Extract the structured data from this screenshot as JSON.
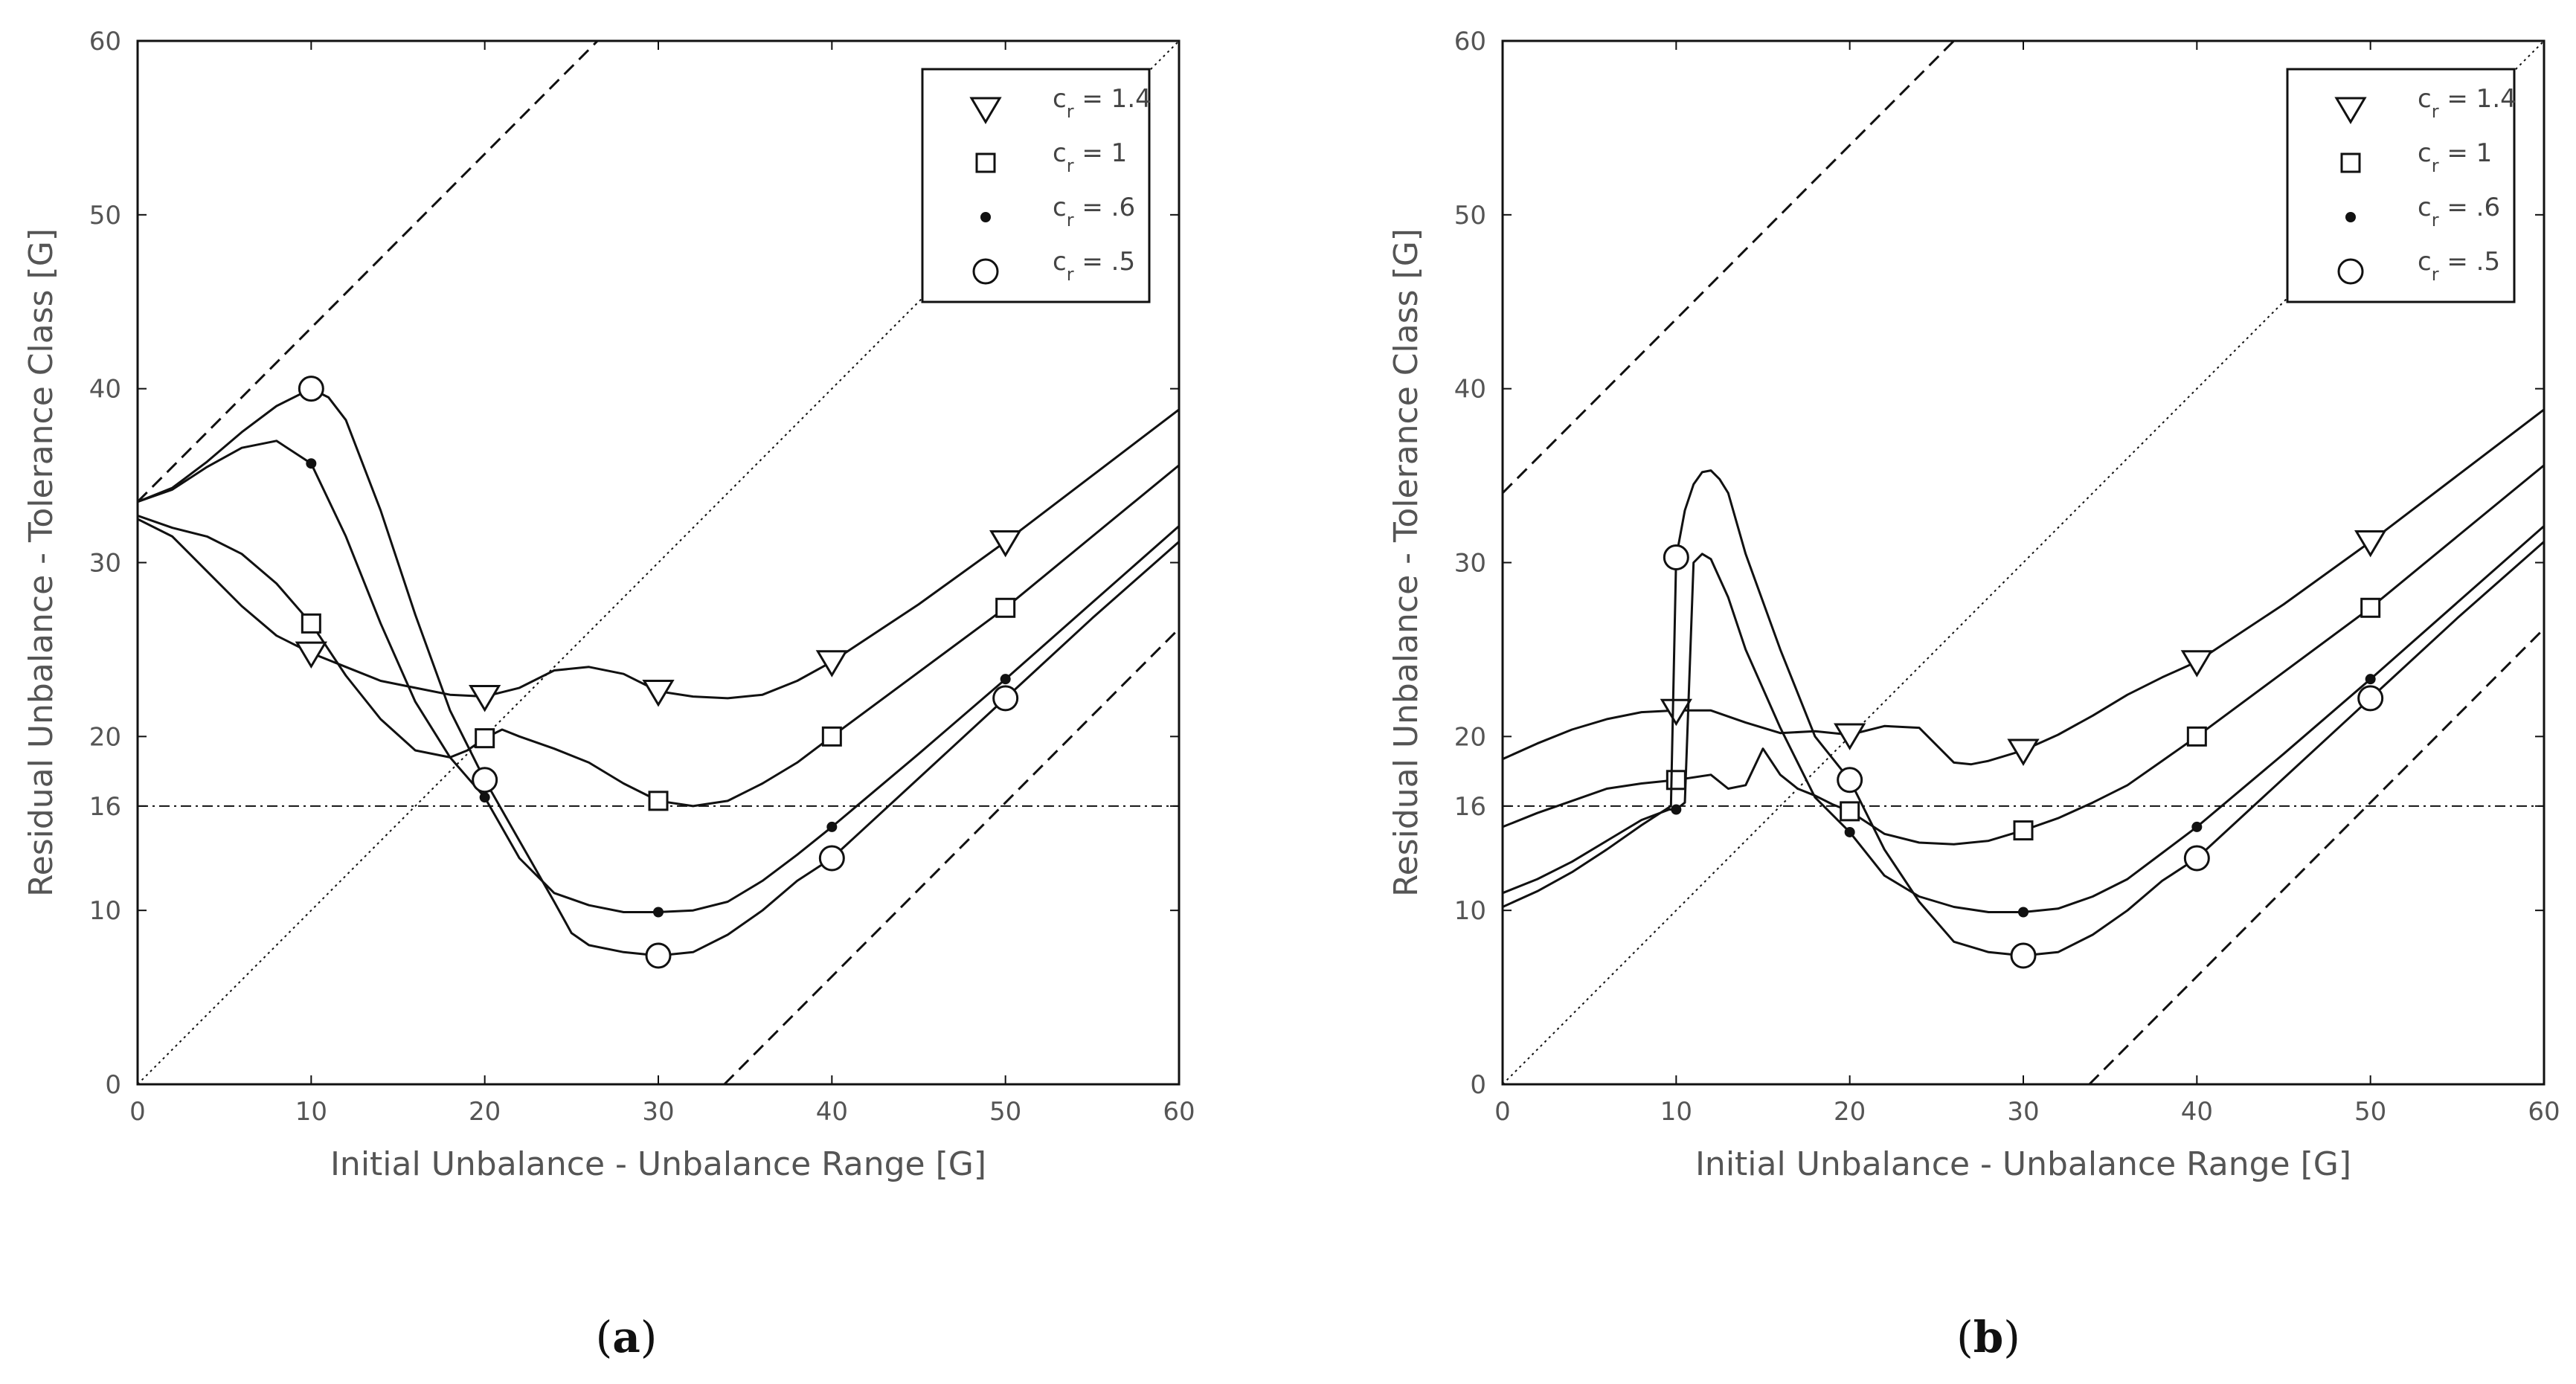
{
  "chart_data": [
    {
      "type": "line",
      "panel_label": "a",
      "xlabel": "Initial Unbalance - Unbalance Range [G]",
      "ylabel": "Residual Unbalance - Tolerance Class [G]",
      "xlim": [
        0,
        60
      ],
      "ylim": [
        0,
        60
      ],
      "xticks": [
        "0",
        "10",
        "20",
        "30",
        "40",
        "50",
        "60"
      ],
      "yticks": [
        "0",
        "10",
        "16",
        "20",
        "30",
        "40",
        "50",
        "60"
      ],
      "reference_lines": [
        {
          "name": "upper dashed",
          "style": "dashed",
          "x": [
            0,
            26.5
          ],
          "y": [
            33.5,
            60
          ]
        },
        {
          "name": "lower dashed",
          "style": "dashed",
          "x": [
            33.8,
            60
          ],
          "y": [
            0,
            26.2
          ]
        },
        {
          "name": "identity",
          "style": "dotted",
          "x": [
            0,
            60
          ],
          "y": [
            0,
            60
          ]
        },
        {
          "name": "tolerance class 16",
          "style": "dashdot",
          "x": [
            0,
            60
          ],
          "y": [
            16,
            16
          ]
        }
      ],
      "legend": {
        "position": "top-right",
        "entries": [
          {
            "label_main": "c",
            "label_sub": "r",
            "label_rest": " = 1.4",
            "marker": "triangle"
          },
          {
            "label_main": "c",
            "label_sub": "r",
            "label_rest": " = 1",
            "marker": "square"
          },
          {
            "label_main": "c",
            "label_sub": "r",
            "label_rest": " = .6",
            "marker": "dot"
          },
          {
            "label_main": "c",
            "label_sub": "r",
            "label_rest": " = .5",
            "marker": "circle"
          }
        ]
      },
      "series": [
        {
          "name": "c_r = 1.4",
          "marker": "triangle",
          "x": [
            0,
            2,
            4,
            6,
            8,
            10,
            12,
            14,
            16,
            18,
            20,
            22,
            24,
            26,
            28,
            30,
            32,
            34,
            36,
            38,
            40,
            45,
            50,
            55,
            60
          ],
          "y": [
            32.5,
            31.5,
            29.5,
            27.5,
            25.8,
            24.8,
            24.0,
            23.2,
            22.8,
            22.4,
            22.3,
            22.8,
            23.8,
            24.0,
            23.6,
            22.6,
            22.3,
            22.2,
            22.4,
            23.2,
            24.3,
            27.6,
            31.2,
            35.0,
            38.8
          ],
          "marker_x": [
            10,
            20,
            30,
            40,
            50
          ],
          "marker_y": [
            24.8,
            22.3,
            22.6,
            24.3,
            31.2
          ]
        },
        {
          "name": "c_r = 1",
          "marker": "square",
          "x": [
            0,
            2,
            4,
            6,
            8,
            10,
            12,
            14,
            16,
            18,
            19,
            20,
            21,
            22,
            24,
            26,
            28,
            30,
            32,
            34,
            36,
            38,
            40,
            45,
            50,
            55,
            60
          ],
          "y": [
            32.7,
            32.0,
            31.5,
            30.5,
            28.8,
            26.5,
            23.5,
            21.0,
            19.2,
            18.8,
            19.2,
            19.9,
            20.4,
            20.0,
            19.3,
            18.5,
            17.3,
            16.3,
            16.0,
            16.3,
            17.3,
            18.5,
            20.0,
            23.7,
            27.4,
            31.5,
            35.6
          ],
          "marker_x": [
            10,
            20,
            30,
            40,
            50
          ],
          "marker_y": [
            26.5,
            19.9,
            16.3,
            20.0,
            27.4
          ]
        },
        {
          "name": "c_r = .6",
          "marker": "dot",
          "x": [
            0,
            2,
            4,
            6,
            8,
            10,
            12,
            14,
            16,
            18,
            20,
            22,
            24,
            26,
            28,
            30,
            32,
            34,
            36,
            38,
            40,
            45,
            50,
            55,
            60
          ],
          "y": [
            33.5,
            34.2,
            35.5,
            36.6,
            37.0,
            35.7,
            31.5,
            26.5,
            22.0,
            18.8,
            16.5,
            13.0,
            11.0,
            10.3,
            9.9,
            9.9,
            10.0,
            10.5,
            11.7,
            13.2,
            14.8,
            19.0,
            23.3,
            27.7,
            32.1
          ],
          "marker_x": [
            10,
            20,
            30,
            40,
            50
          ],
          "marker_y": [
            35.7,
            16.5,
            9.9,
            14.8,
            23.3
          ]
        },
        {
          "name": "c_r = .5",
          "marker": "circle",
          "x": [
            0,
            2,
            4,
            6,
            8,
            10,
            11,
            12,
            14,
            16,
            18,
            20,
            22,
            24,
            25,
            26,
            28,
            30,
            32,
            34,
            36,
            38,
            40,
            45,
            50,
            55,
            60
          ],
          "y": [
            33.5,
            34.3,
            35.8,
            37.5,
            39.0,
            40.0,
            39.5,
            38.2,
            33.0,
            27.0,
            21.5,
            17.5,
            14.0,
            10.5,
            8.7,
            8.0,
            7.6,
            7.4,
            7.6,
            8.6,
            10.0,
            11.7,
            13.0,
            17.6,
            22.2,
            26.8,
            31.2
          ],
          "marker_x": [
            10,
            20,
            30,
            40,
            50
          ],
          "marker_y": [
            40.0,
            17.5,
            7.4,
            13.0,
            22.2
          ]
        }
      ]
    },
    {
      "type": "line",
      "panel_label": "b",
      "xlabel": "Initial Unbalance - Unbalance Range [G]",
      "ylabel": "Residual Unbalance - Tolerance Class [G]",
      "xlim": [
        0,
        60
      ],
      "ylim": [
        0,
        60
      ],
      "xticks": [
        "0",
        "10",
        "20",
        "30",
        "40",
        "50",
        "60"
      ],
      "yticks": [
        "0",
        "10",
        "16",
        "20",
        "30",
        "40",
        "50",
        "60"
      ],
      "reference_lines": [
        {
          "name": "upper dashed",
          "style": "dashed",
          "x": [
            0,
            26.0
          ],
          "y": [
            34.0,
            60
          ]
        },
        {
          "name": "lower dashed",
          "style": "dashed",
          "x": [
            33.8,
            60
          ],
          "y": [
            0,
            26.2
          ]
        },
        {
          "name": "identity",
          "style": "dotted",
          "x": [
            0,
            60
          ],
          "y": [
            0,
            60
          ]
        },
        {
          "name": "tolerance class 16",
          "style": "dashdot",
          "x": [
            0,
            60
          ],
          "y": [
            16,
            16
          ]
        }
      ],
      "legend": {
        "position": "top-right",
        "entries": [
          {
            "label_main": "c",
            "label_sub": "r",
            "label_rest": " = 1.4",
            "marker": "triangle"
          },
          {
            "label_main": "c",
            "label_sub": "r",
            "label_rest": " = 1",
            "marker": "square"
          },
          {
            "label_main": "c",
            "label_sub": "r",
            "label_rest": " = .6",
            "marker": "dot"
          },
          {
            "label_main": "c",
            "label_sub": "r",
            "label_rest": " = .5",
            "marker": "circle"
          }
        ]
      },
      "series": [
        {
          "name": "c_r = 1.4",
          "marker": "triangle",
          "x": [
            0,
            2,
            4,
            6,
            8,
            10,
            12,
            14,
            16,
            18,
            20,
            22,
            24,
            26,
            27,
            28,
            30,
            32,
            34,
            36,
            38,
            40,
            45,
            50,
            55,
            60
          ],
          "y": [
            18.7,
            19.6,
            20.4,
            21.0,
            21.4,
            21.5,
            21.5,
            20.8,
            20.2,
            20.3,
            20.1,
            20.6,
            20.5,
            18.5,
            18.4,
            18.6,
            19.2,
            20.1,
            21.2,
            22.4,
            23.4,
            24.3,
            27.6,
            31.2,
            35.0,
            38.8
          ],
          "marker_x": [
            10,
            20,
            30,
            40,
            50
          ],
          "marker_y": [
            21.5,
            20.1,
            19.2,
            24.3,
            31.2
          ]
        },
        {
          "name": "c_r = 1",
          "marker": "square",
          "x": [
            0,
            2,
            4,
            6,
            8,
            10,
            12,
            13,
            14,
            15,
            16,
            17,
            18,
            19,
            20,
            22,
            24,
            26,
            28,
            30,
            32,
            34,
            36,
            38,
            40,
            45,
            50,
            55,
            60
          ],
          "y": [
            14.8,
            15.6,
            16.3,
            17.0,
            17.3,
            17.5,
            17.8,
            17.0,
            17.2,
            19.3,
            17.8,
            17.0,
            16.6,
            16.1,
            15.7,
            14.4,
            13.9,
            13.8,
            14.0,
            14.6,
            15.3,
            16.2,
            17.2,
            18.6,
            20.0,
            23.7,
            27.4,
            31.5,
            35.6
          ],
          "marker_x": [
            10,
            20,
            30,
            40,
            50
          ],
          "marker_y": [
            17.5,
            15.7,
            14.6,
            20.0,
            27.4
          ]
        },
        {
          "name": "c_r = .6",
          "marker": "dot",
          "x": [
            0,
            2,
            4,
            6,
            8,
            9.6,
            10,
            10.5,
            11,
            11.5,
            12,
            13,
            14,
            16,
            18,
            20,
            22,
            24,
            26,
            28,
            30,
            32,
            34,
            36,
            38,
            40,
            45,
            50,
            55,
            60
          ],
          "y": [
            11.0,
            11.8,
            12.8,
            14.0,
            15.2,
            15.8,
            15.8,
            16.2,
            30.0,
            30.5,
            30.2,
            28.0,
            25.0,
            20.5,
            16.5,
            14.5,
            12.0,
            10.8,
            10.2,
            9.9,
            9.9,
            10.1,
            10.8,
            11.8,
            13.3,
            14.8,
            19.0,
            23.3,
            27.7,
            32.1
          ],
          "marker_x": [
            10,
            20,
            30,
            40,
            50
          ],
          "marker_y": [
            15.8,
            14.5,
            9.9,
            14.8,
            23.3
          ]
        },
        {
          "name": "c_r = .5",
          "marker": "circle",
          "x": [
            0,
            2,
            4,
            6,
            8,
            9.7,
            10,
            10.5,
            11,
            11.5,
            12,
            12.5,
            13,
            14,
            16,
            18,
            20,
            22,
            24,
            26,
            28,
            30,
            32,
            34,
            36,
            38,
            40,
            45,
            50,
            55,
            60
          ],
          "y": [
            10.2,
            11.1,
            12.2,
            13.5,
            14.9,
            16.0,
            30.3,
            33.0,
            34.5,
            35.2,
            35.3,
            34.8,
            34.0,
            30.5,
            25.0,
            20.0,
            17.5,
            13.5,
            10.5,
            8.2,
            7.6,
            7.4,
            7.6,
            8.6,
            10.0,
            11.7,
            13.0,
            17.6,
            22.2,
            26.8,
            31.2
          ],
          "marker_x": [
            10,
            20,
            30,
            40,
            50
          ],
          "marker_y": [
            30.3,
            17.5,
            7.4,
            13.0,
            22.2
          ]
        }
      ]
    }
  ]
}
